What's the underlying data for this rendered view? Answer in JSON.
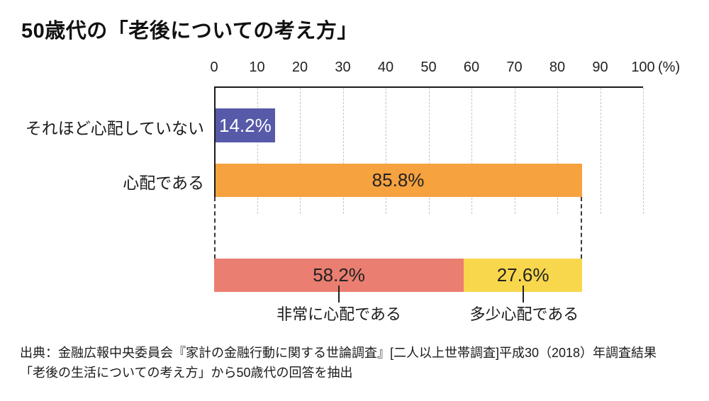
{
  "title": "50歳代の「老後についての考え方」",
  "chart_data": {
    "type": "bar",
    "orientation": "horizontal",
    "title": "50歳代の「老後についての考え方」",
    "unit_label": "(%)",
    "xlim": [
      0,
      100
    ],
    "axis_ticks": [
      "0",
      "10",
      "20",
      "30",
      "40",
      "50",
      "60",
      "70",
      "80",
      "90",
      "100"
    ],
    "grid": "dashed-vertical",
    "rows": [
      {
        "label": "それほど心配していない",
        "value": 14.2,
        "display": "14.2%",
        "color": "#575aa8"
      },
      {
        "label": "心配である",
        "value": 85.8,
        "display": "85.8%",
        "color": "#f6a23f"
      }
    ],
    "breakdown": {
      "of": "心配である",
      "segments": [
        {
          "label": "非常に心配である",
          "value": 58.2,
          "display": "58.2%",
          "color": "#e97e71"
        },
        {
          "label": "多少心配である",
          "value": 27.6,
          "display": "27.6%",
          "color": "#f8d74c"
        }
      ]
    }
  },
  "colors": {
    "axis": "#1a1a1a",
    "gridline": "#c5c5c5",
    "bar_blue": "#575aa8",
    "bar_orange": "#f6a23f",
    "bar_salmon": "#e97e71",
    "bar_yellow": "#f8d74c"
  },
  "source": {
    "line1": "出典：金融広報中央委員会『家計の金融行動に関する世論調査』[二人以上世帯調査]平成30（2018）年調査結果",
    "line2": "「老後の生活についての考え方」から50歳代の回答を抽出"
  }
}
